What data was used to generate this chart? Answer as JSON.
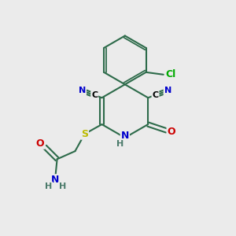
{
  "background_color": "#ebebeb",
  "bond_color": "#2d6b4a",
  "bond_width": 1.5,
  "atom_colors": {
    "C": "#000000",
    "N": "#0000cc",
    "O": "#cc0000",
    "S": "#bbbb00",
    "Cl": "#00aa00",
    "H": "#4a7a6a"
  },
  "font_size": 9
}
